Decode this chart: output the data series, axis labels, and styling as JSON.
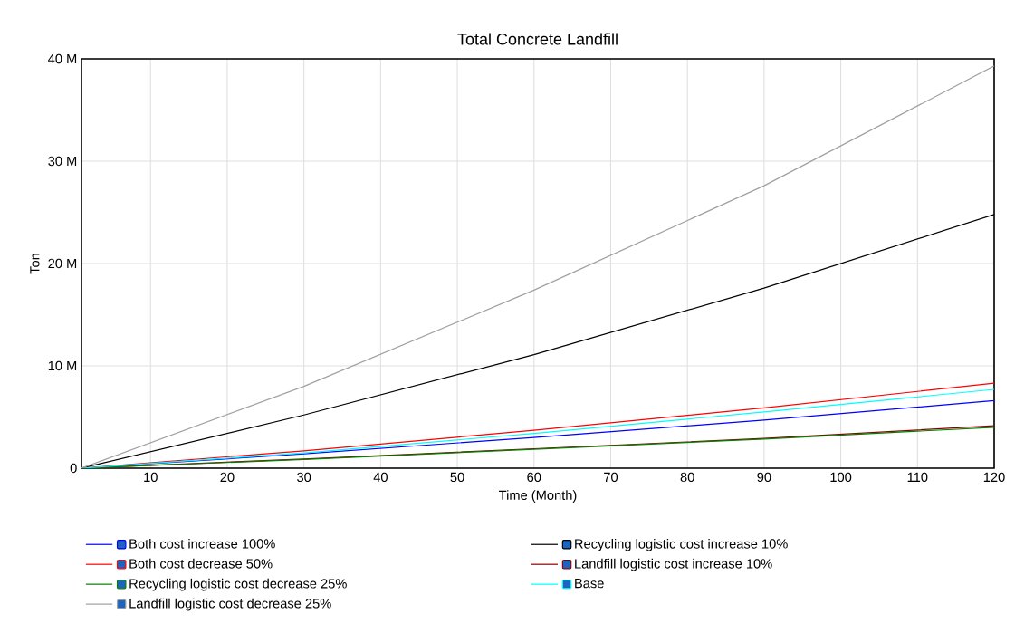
{
  "chart_data": {
    "type": "line",
    "title": "Total Concrete Landfill",
    "xlabel": "Time (Month)",
    "ylabel": "Ton",
    "x": [
      1,
      30,
      60,
      90,
      120
    ],
    "series": [
      {
        "name": "Both cost increase 100%",
        "color": "#0000ff",
        "values": [
          0,
          1.4,
          3.0,
          4.7,
          6.6
        ]
      },
      {
        "name": "Recycling logistic cost increase 10%",
        "color": "#000000",
        "values": [
          0,
          5.2,
          11.1,
          17.6,
          24.8
        ]
      },
      {
        "name": "Both cost decrease 50%",
        "color": "#ff0000",
        "values": [
          0,
          1.7,
          3.7,
          5.9,
          8.3
        ]
      },
      {
        "name": "Landfill logistic cost increase 10%",
        "color": "#8b0000",
        "values": [
          0,
          0.9,
          1.9,
          2.9,
          4.15
        ]
      },
      {
        "name": "Recycling logistic cost decrease 25%",
        "color": "#008000",
        "values": [
          0,
          0.85,
          1.85,
          2.85,
          4.0
        ]
      },
      {
        "name": "Base",
        "color": "#00ffff",
        "values": [
          0,
          1.5,
          3.4,
          5.5,
          7.7
        ]
      },
      {
        "name": "Landfill logistic cost decrease 25%",
        "color": "#a0a0a0",
        "values": [
          0,
          8.0,
          17.4,
          27.6,
          39.3
        ]
      }
    ],
    "xlim": [
      1,
      120
    ],
    "xticks": [
      10,
      20,
      30,
      40,
      50,
      60,
      70,
      80,
      90,
      100,
      110,
      120
    ],
    "ylim": [
      0,
      40
    ],
    "yticks": [
      0,
      {
        "value": 10,
        "label": "10 M"
      },
      {
        "value": 20,
        "label": "20 M"
      },
      {
        "value": 30,
        "label": "30 M"
      },
      {
        "value": 40,
        "label": "40 M"
      }
    ],
    "grid": true,
    "legend": "bottom",
    "marker": "none",
    "line_style": "solid"
  }
}
